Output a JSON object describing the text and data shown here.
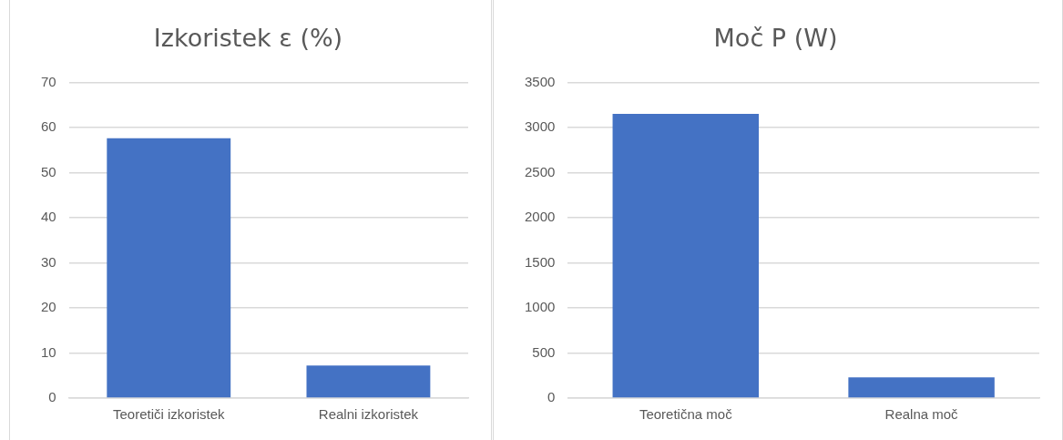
{
  "chart_data": [
    {
      "type": "bar",
      "title": "Izkoristek ε (%)",
      "categories": [
        "Teoretiči izkoristek",
        "Realni izkoristek"
      ],
      "values": [
        57.6,
        7.2
      ],
      "color": "#4472c4",
      "ylim": [
        0,
        70
      ],
      "yticks": [
        0,
        10,
        20,
        30,
        40,
        50,
        60,
        70
      ],
      "grid": "y"
    },
    {
      "type": "bar",
      "title": "Moč P (W)",
      "categories": [
        "Teoretična moč",
        "Realna moč"
      ],
      "values": [
        3150,
        230
      ],
      "color": "#4472c4",
      "ylim": [
        0,
        3500
      ],
      "yticks": [
        0,
        500,
        1000,
        1500,
        2000,
        2500,
        3000,
        3500
      ],
      "grid": "y"
    }
  ]
}
